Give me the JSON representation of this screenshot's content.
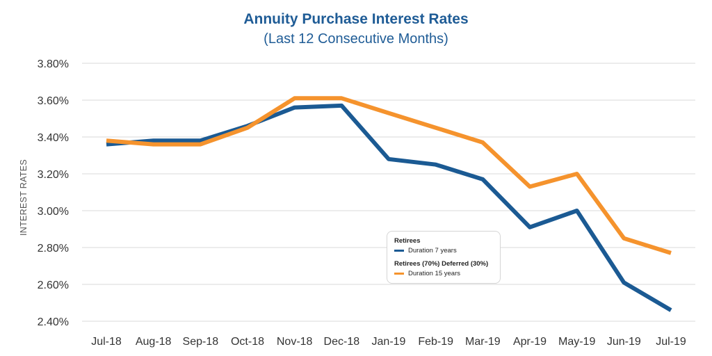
{
  "chart_data": {
    "type": "line",
    "title": "Annuity Purchase Interest Rates",
    "subtitle": "(Last 12 Consecutive Months)",
    "ylabel": "INTEREST RATES",
    "xlabel": "",
    "categories": [
      "Jul-18",
      "Aug-18",
      "Sep-18",
      "Oct-18",
      "Nov-18",
      "Dec-18",
      "Jan-19",
      "Feb-19",
      "Mar-19",
      "Apr-19",
      "May-19",
      "Jun-19",
      "Jul-19"
    ],
    "ylim": [
      2.4,
      3.8
    ],
    "yticks": [
      "3.80%",
      "3.60%",
      "3.40%",
      "3.20%",
      "3.00%",
      "2.80%",
      "2.60%",
      "2.40%"
    ],
    "ytick_values": [
      3.8,
      3.6,
      3.4,
      3.2,
      3.0,
      2.8,
      2.6,
      2.4
    ],
    "grid": true,
    "series": [
      {
        "name": "Retirees",
        "sublabel": "Duration 7 years",
        "color": "#1b5a93",
        "values": [
          3.36,
          3.38,
          3.38,
          3.46,
          3.56,
          3.57,
          3.28,
          3.25,
          3.17,
          2.91,
          3.0,
          2.61,
          2.46
        ]
      },
      {
        "name": "Retirees (70%) Deferred (30%)",
        "sublabel": "Duration 15 years",
        "color": "#f5932d",
        "values": [
          3.38,
          3.36,
          3.36,
          3.45,
          3.61,
          3.61,
          3.53,
          3.45,
          3.37,
          3.13,
          3.2,
          2.85,
          2.77
        ]
      }
    ]
  }
}
